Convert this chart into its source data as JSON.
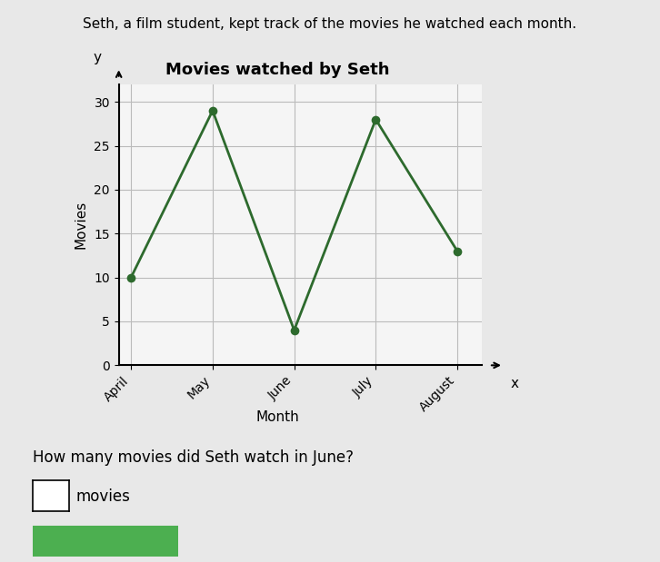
{
  "title": "Movies watched by Seth",
  "suptitle": "Seth, a film student, kept track of the movies he watched each month.",
  "xlabel": "Month",
  "ylabel": "Movies",
  "months": [
    "April",
    "May",
    "June",
    "July",
    "August"
  ],
  "values": [
    10,
    29,
    4,
    28,
    13
  ],
  "line_color": "#2d6a2d",
  "marker_color": "#2d6a2d",
  "ylim": [
    0,
    32
  ],
  "yticks": [
    0,
    5,
    10,
    15,
    20,
    25,
    30
  ],
  "bg_color": "#e8e8e8",
  "plot_bg": "#f5f5f5",
  "question": "How many movies did Seth watch in June?",
  "answer_label": "movies",
  "title_fontsize": 13,
  "tick_fontsize": 10,
  "label_fontsize": 11
}
